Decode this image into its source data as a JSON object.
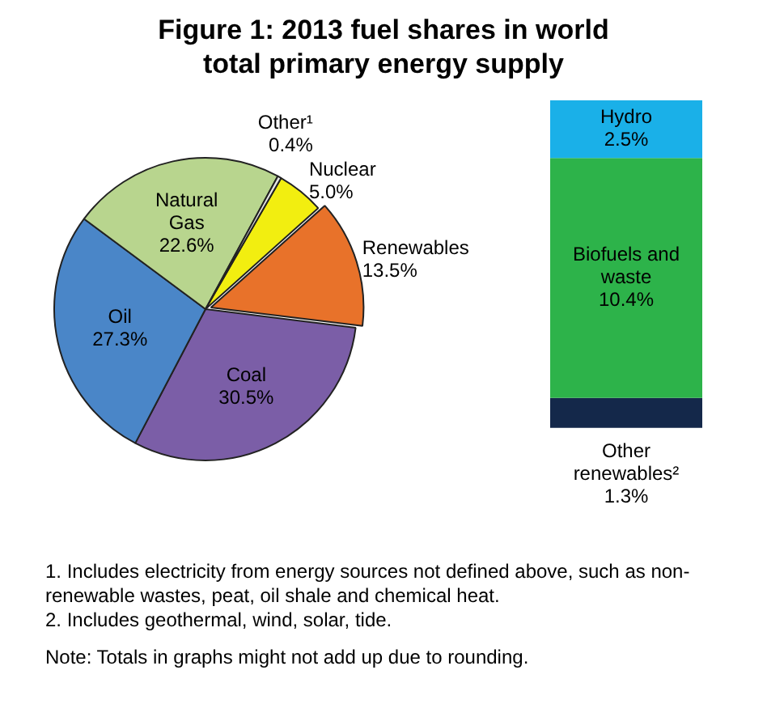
{
  "chart_data": [
    {
      "type": "pie",
      "title": "Figure 1: 2013 fuel shares in world total primary energy supply",
      "categories": [
        "Nuclear",
        "Renewables",
        "Coal",
        "Oil",
        "Natural Gas",
        "Other¹"
      ],
      "values": [
        5.0,
        13.5,
        30.5,
        27.3,
        22.6,
        0.4
      ],
      "colors": [
        "#f2ee10",
        "#e8722a",
        "#7b5ea7",
        "#4a86c8",
        "#b8d58e",
        "#e6e6e6"
      ],
      "value_labels": [
        "5.0%",
        "13.5%",
        "30.5%",
        "27.3%",
        "22.6%",
        "0.4%"
      ],
      "annotations": [
        "1. Includes electricity from energy sources not defined above, such as non-renewable wastes, peat, oil shale and chemical heat.",
        "2. Includes geothermal, wind, solar, tide.",
        "Note: Totals in graphs might not add up due to rounding."
      ]
    },
    {
      "type": "bar",
      "stacked": true,
      "categories": [
        null
      ],
      "series": [
        {
          "name": "Other renewables²",
          "color": "#14284a",
          "values": [
            1.3
          ],
          "value_labels": [
            "1.3%"
          ]
        },
        {
          "name": "Biofuels and waste",
          "color": "#2db34a",
          "values": [
            10.4
          ],
          "value_labels": [
            "10.4%"
          ]
        },
        {
          "name": "Hydro",
          "color": "#1ab0e8",
          "values": [
            2.5
          ],
          "value_labels": [
            "2.5%"
          ]
        }
      ]
    }
  ]
}
